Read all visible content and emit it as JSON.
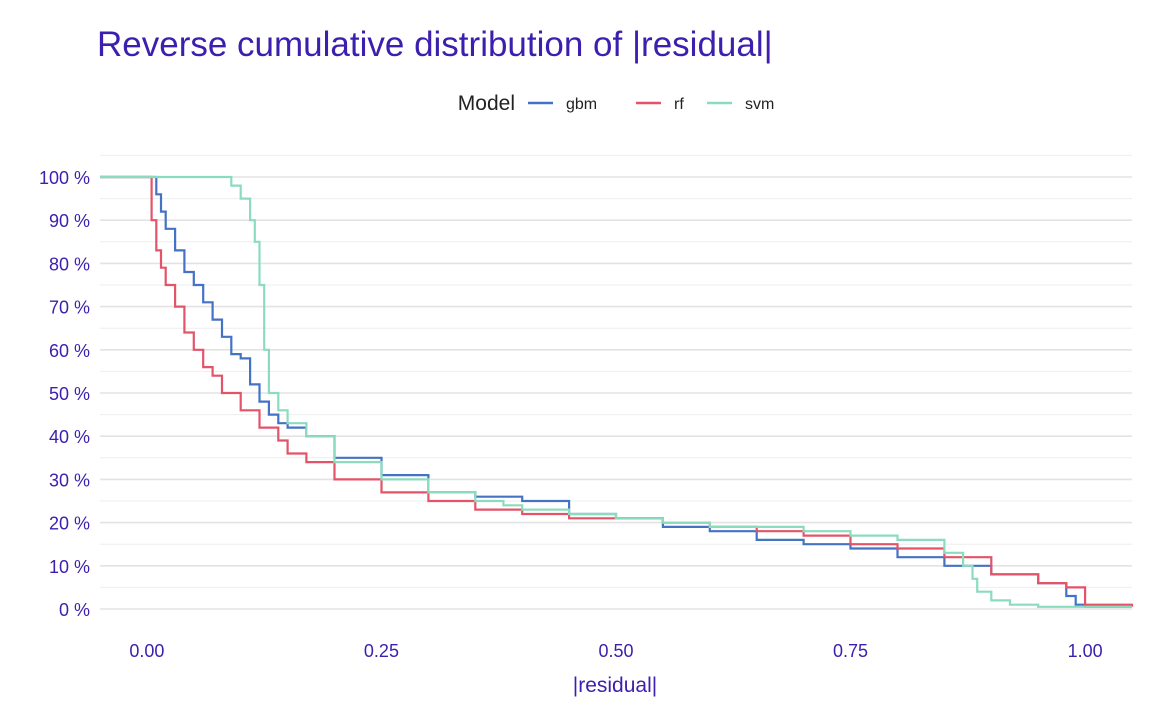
{
  "chart_data": {
    "type": "line",
    "step": true,
    "title": "Reverse cumulative distribution of |residual|",
    "xlabel": "|residual|",
    "ylabel": "",
    "xlim": [
      -0.05,
      1.05
    ],
    "ylim": [
      0,
      100
    ],
    "grid": true,
    "x_ticks": [
      0.0,
      0.25,
      0.5,
      0.75,
      1.0
    ],
    "x_tick_labels": [
      "0.00",
      "0.25",
      "0.50",
      "0.75",
      "1.00"
    ],
    "y_ticks": [
      0,
      10,
      20,
      30,
      40,
      50,
      60,
      70,
      80,
      90,
      100
    ],
    "y_tick_labels": [
      "0 %",
      "10 %",
      "20 %",
      "30 %",
      "40 %",
      "50 %",
      "60 %",
      "70 %",
      "80 %",
      "90 %",
      "100 %"
    ],
    "legend": {
      "title": "Model",
      "position": "top"
    },
    "series": [
      {
        "name": "gbm",
        "color": "#4472C4",
        "x": [
          -0.05,
          0.005,
          0.01,
          0.015,
          0.02,
          0.03,
          0.04,
          0.05,
          0.06,
          0.07,
          0.08,
          0.09,
          0.1,
          0.11,
          0.12,
          0.13,
          0.14,
          0.15,
          0.17,
          0.2,
          0.25,
          0.3,
          0.35,
          0.4,
          0.45,
          0.5,
          0.55,
          0.6,
          0.65,
          0.7,
          0.75,
          0.8,
          0.85,
          0.9,
          0.95,
          0.98,
          0.99,
          1.0,
          1.05
        ],
        "y": [
          100,
          100,
          96,
          92,
          88,
          83,
          78,
          75,
          71,
          67,
          63,
          59,
          58,
          52,
          48,
          45,
          43,
          42,
          40,
          35,
          31,
          27,
          26,
          25,
          22,
          21,
          19,
          18,
          16,
          15,
          14,
          12,
          10,
          8,
          6,
          3,
          1,
          0.5,
          0.5
        ]
      },
      {
        "name": "rf",
        "color": "#E35468",
        "x": [
          -0.05,
          0.0,
          0.005,
          0.01,
          0.015,
          0.02,
          0.03,
          0.04,
          0.05,
          0.06,
          0.07,
          0.08,
          0.1,
          0.12,
          0.14,
          0.15,
          0.17,
          0.2,
          0.25,
          0.3,
          0.35,
          0.4,
          0.45,
          0.5,
          0.55,
          0.6,
          0.65,
          0.7,
          0.75,
          0.8,
          0.85,
          0.9,
          0.95,
          0.98,
          1.0,
          1.05
        ],
        "y": [
          100,
          100,
          90,
          83,
          79,
          75,
          70,
          64,
          60,
          56,
          54,
          50,
          46,
          42,
          39,
          36,
          34,
          30,
          27,
          25,
          23,
          22,
          21,
          21,
          20,
          19,
          18,
          17,
          15,
          14,
          12,
          8,
          6,
          5,
          1,
          0.5
        ]
      },
      {
        "name": "svm",
        "color": "#8BDCBE",
        "x": [
          -0.05,
          0.06,
          0.08,
          0.09,
          0.1,
          0.11,
          0.115,
          0.12,
          0.125,
          0.13,
          0.14,
          0.15,
          0.17,
          0.2,
          0.25,
          0.3,
          0.35,
          0.38,
          0.4,
          0.45,
          0.5,
          0.55,
          0.6,
          0.65,
          0.7,
          0.75,
          0.8,
          0.85,
          0.87,
          0.88,
          0.885,
          0.9,
          0.92,
          0.95,
          1.0,
          1.05
        ],
        "y": [
          100,
          100,
          100,
          98,
          95,
          90,
          85,
          75,
          60,
          50,
          46,
          43,
          40,
          34,
          30,
          27,
          25,
          24,
          23,
          22,
          21,
          20,
          19,
          19,
          18,
          17,
          16,
          13,
          10,
          7,
          4,
          2,
          1,
          0.5,
          0.5,
          0.5
        ]
      }
    ]
  }
}
